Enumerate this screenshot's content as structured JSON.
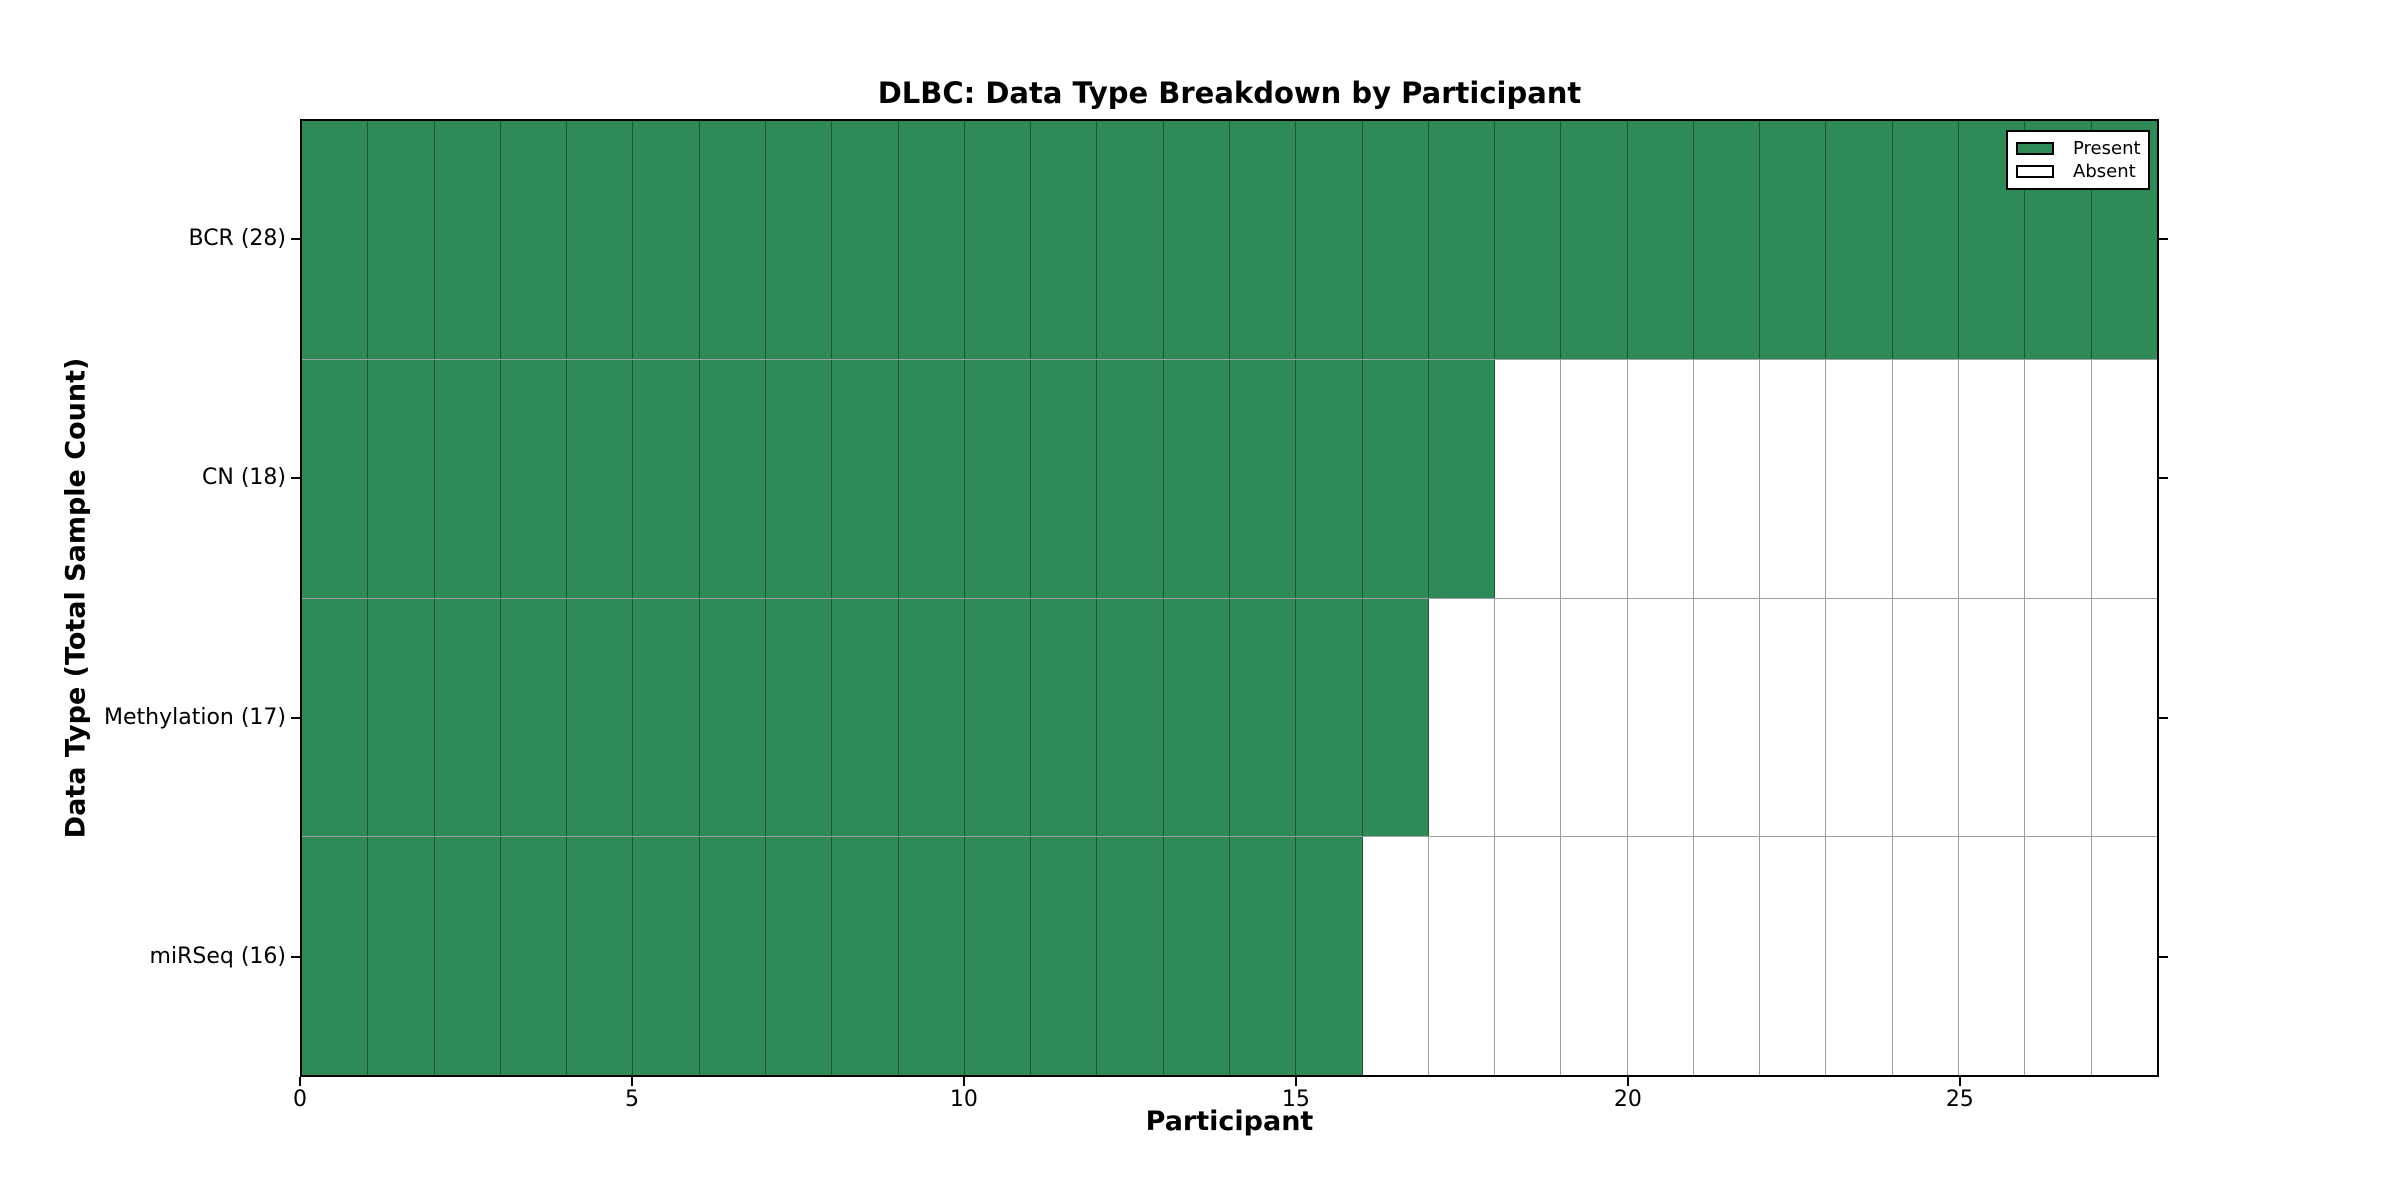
{
  "chart_data": {
    "type": "heatmap",
    "title": "DLBC: Data Type Breakdown by Participant",
    "xlabel": "Participant",
    "ylabel": "Data Type (Total Sample Count)",
    "xlim": [
      0,
      28
    ],
    "n_participants": 28,
    "x_ticks": [
      0,
      5,
      10,
      15,
      20,
      25
    ],
    "grid": "cell edges drawn on all cells",
    "rows": [
      {
        "data_type": "BCR",
        "label": "BCR (28)",
        "total_samples": 28,
        "present_count": 28,
        "absent_count": 0,
        "fill_pattern": "participants 0-27 present"
      },
      {
        "data_type": "CN",
        "label": "CN (18)",
        "total_samples": 18,
        "present_count": 18,
        "absent_count": 10,
        "fill_pattern": "participants 0-17 present"
      },
      {
        "data_type": "Methylation",
        "label": "Methylation (17)",
        "total_samples": 17,
        "present_count": 17,
        "absent_count": 11,
        "fill_pattern": "participants 0-16 present"
      },
      {
        "data_type": "miRSeq",
        "label": "miRSeq (16)",
        "total_samples": 16,
        "present_count": 16,
        "absent_count": 12,
        "fill_pattern": "participants 0-15 present"
      }
    ],
    "legend": {
      "position": "upper right",
      "entries": [
        {
          "label": "Present",
          "color": "#2e8b57"
        },
        {
          "label": "Absent",
          "color": "#ffffff"
        }
      ]
    },
    "colors": {
      "present": "#2e8b57",
      "absent": "#ffffff",
      "cell_edge": "rgba(0,0,0,0.38)",
      "frame": "#000000",
      "background": "#ffffff"
    }
  }
}
